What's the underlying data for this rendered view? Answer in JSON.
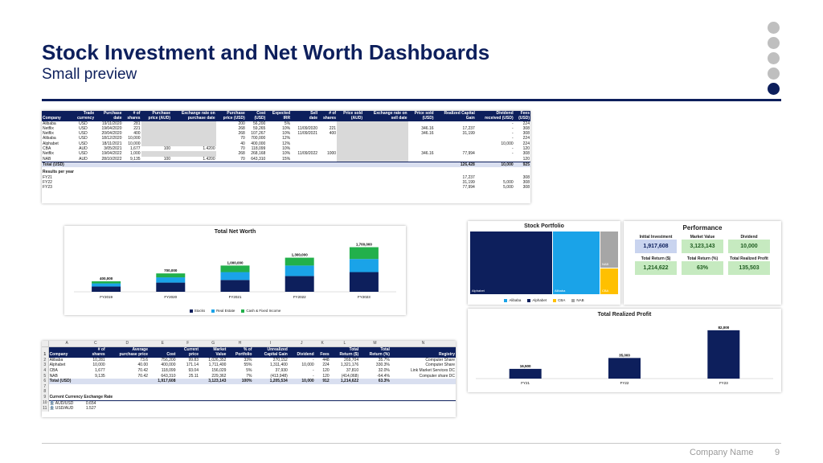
{
  "header": {
    "title": "Stock Investment and Net Worth Dashboards",
    "subtitle": "Small preview"
  },
  "footer": {
    "company": "Company Name",
    "page": "9"
  },
  "nav_dots": {
    "count": 5,
    "active_index": 4
  },
  "colors": {
    "navy": "#0d1f5c",
    "blue": "#1aa3e8",
    "green": "#22b04b",
    "grey": "#a6a6a6",
    "gold": "#ffc000"
  },
  "transactions_sheet": {
    "headers": [
      [
        "",
        "Company"
      ],
      [
        "Trade",
        "currency"
      ],
      [
        "Purchase",
        "date"
      ],
      [
        "# of",
        "shares"
      ],
      [
        "Purchase",
        "price (AUD)"
      ],
      [
        "Exchange rate on",
        "purchase date"
      ],
      [
        "Purchase",
        "price (USD)"
      ],
      [
        "Cost",
        "(USD)"
      ],
      [
        "Expected",
        "IRR"
      ],
      [
        "Sell",
        "date"
      ],
      [
        "# of",
        "shares"
      ],
      [
        "Price sold",
        "(AUD)"
      ],
      [
        "Exchange rate on",
        "sell date"
      ],
      [
        "Price sold",
        "(USD)"
      ],
      [
        "Realized Capital",
        "Gain"
      ],
      [
        "Dividend",
        "received (USD)"
      ],
      [
        "Fees",
        "(USD)"
      ]
    ],
    "rows": [
      [
        "Alibaba",
        "USD",
        "19/11/2020",
        "281",
        "",
        "",
        "200",
        "56,200",
        "5%",
        "",
        "",
        "",
        "",
        "",
        "",
        "-",
        "224"
      ],
      [
        "Netflix",
        "USD",
        "19/04/2020",
        "221",
        "",
        "",
        "268",
        "59,265",
        "10%",
        "11/09/2020",
        "221",
        "",
        "",
        "346.16",
        "17,237",
        "-",
        "308"
      ],
      [
        "Netflix",
        "USD",
        "20/04/2020",
        "400",
        "",
        "",
        "268",
        "107,267",
        "10%",
        "11/09/2021",
        "400",
        "",
        "",
        "346.16",
        "31,199",
        "-",
        "308"
      ],
      [
        "Alibaba",
        "USD",
        "18/12/2020",
        "10,000",
        "",
        "",
        "70",
        "700,000",
        "12%",
        "",
        "",
        "",
        "",
        "",
        "",
        "-",
        "224"
      ],
      [
        "Alphabet",
        "USD",
        "18/11/2021",
        "10,000",
        "",
        "",
        "40",
        "400,000",
        "12%",
        "",
        "",
        "",
        "",
        "",
        "",
        "10,000",
        "224"
      ],
      [
        "CBA",
        "AUD",
        "3/05/2021",
        "1,677",
        "100",
        "1.4200",
        "70",
        "118,099",
        "10%",
        "",
        "",
        "",
        "",
        "",
        "",
        "-",
        "120"
      ],
      [
        "Netflix",
        "USD",
        "19/04/2022",
        "1,000",
        "",
        "",
        "268",
        "268,168",
        "10%",
        "11/09/2022",
        "1000",
        "",
        "",
        "346.16",
        "77,994",
        "-",
        "308"
      ],
      [
        "NAB",
        "AUD",
        "28/10/2022",
        "9,135",
        "100",
        "1.4200",
        "70",
        "643,310",
        "15%",
        "",
        "",
        "",
        "",
        "",
        "",
        "",
        "120"
      ]
    ],
    "total": {
      "label": "Total (USD)",
      "cost": "",
      "realized": "126,428",
      "dividend": "10,000",
      "fees": "925"
    },
    "results_label": "Results per year",
    "years": [
      {
        "fy": "FY21",
        "realized": "17,237",
        "dividend": "",
        "fees": "308"
      },
      {
        "fy": "FY22",
        "realized": "31,199",
        "dividend": "5,000",
        "fees": "308"
      },
      {
        "fy": "FY23",
        "realized": "77,994",
        "dividend": "5,000",
        "fees": "308"
      }
    ]
  },
  "net_worth_chart": {
    "title": "Total Net Worth",
    "legend": [
      {
        "name": "Stocks",
        "color": "#0d1f5c"
      },
      {
        "name": "Real Estate",
        "color": "#1aa3e8"
      },
      {
        "name": "Cash & Fixed Income",
        "color": "#22b04b"
      }
    ]
  },
  "portfolio_chart": {
    "title": "Stock Portfolio",
    "tiles": [
      {
        "label": "Alphabet",
        "color": "#0d1f5c"
      },
      {
        "label": "Alibaba",
        "color": "#1aa3e8"
      },
      {
        "label": "NAB",
        "color": "#a6a6a6"
      },
      {
        "label": "CBA",
        "color": "#ffc000"
      }
    ],
    "legend": [
      "Alibaba",
      "Alphabet",
      "CBA",
      "NAB"
    ]
  },
  "performance": {
    "title": "Performance",
    "kpis": [
      {
        "label": "Initial Investment",
        "value": "1,917,608",
        "style": "blue"
      },
      {
        "label": "Market Value",
        "value": "3,123,143",
        "style": "green"
      },
      {
        "label": "Dividend",
        "value": "10,000",
        "style": "green"
      },
      {
        "label": "Total Return ($)",
        "value": "1,214,622",
        "style": "green"
      },
      {
        "label": "Total Return (%)",
        "value": "63%",
        "style": "green"
      },
      {
        "label": "Total Realized Profit",
        "value": "135,503",
        "style": "green"
      }
    ]
  },
  "realized_chart": {
    "title": "Total Realized Profit"
  },
  "holdings_sheet": {
    "letters": [
      "A",
      "C",
      "D",
      "E",
      "F",
      "G",
      "H",
      "I",
      "J",
      "K",
      "L",
      "M",
      "N"
    ],
    "header_top": [
      "",
      "# of",
      "Average",
      "",
      "Current",
      "Market",
      "% of",
      "Unrealized",
      "",
      "",
      "Total",
      "Total",
      ""
    ],
    "header_bottom": [
      "Company",
      "shares",
      "purchase price",
      "Cost",
      "price",
      "Value",
      "Portfolio",
      "Capital Gain",
      "Dividend",
      "Fees",
      "Return ($)",
      "Return (%)",
      "Registry"
    ],
    "rows": [
      [
        "Alibaba",
        "10,281",
        "73.6",
        "756,200",
        "99.83",
        "1,026,352",
        "33%",
        "270,152",
        "-",
        "448",
        "269,704",
        "35.7%",
        "Computer Share"
      ],
      [
        "Alphabet",
        "10,000",
        "40.00",
        "400,000",
        "171.14",
        "1,711,400",
        "55%",
        "1,311,400",
        "10,000",
        "224",
        "1,321,176",
        "330.3%",
        "Computer Share"
      ],
      [
        "CBA",
        "1,677",
        "70.42",
        "118,099",
        "93.04",
        "156,029",
        "5%",
        "37,930",
        "-",
        "120",
        "37,810",
        "32.0%",
        "Link Market Services DC"
      ],
      [
        "NAB",
        "9,135",
        "70.42",
        "643,310",
        "25.11",
        "229,362",
        "7%",
        "(413,948)",
        "-",
        "120",
        "(414,068)",
        "-64.4%",
        "Computer share DC"
      ]
    ],
    "total": [
      "Total (USD)",
      "",
      "",
      "1,917,608",
      "",
      "3,123,143",
      "100%",
      "1,205,534",
      "10,000",
      "912",
      "1,214,622",
      "63.3%",
      ""
    ],
    "fx_label": "Current Currency Exchange Rate",
    "fx": [
      {
        "pair": "AUD/USD",
        "rate": "0.654"
      },
      {
        "pair": "USD/AUD",
        "rate": "1.527"
      }
    ]
  },
  "chart_data": [
    {
      "type": "bar",
      "title": "Total Net Worth",
      "stacked": true,
      "categories": [
        "FY2019",
        "FY2020",
        "FY2021",
        "FY2022",
        "FY2023"
      ],
      "totals": [
        400000,
        700000,
        1000000,
        1300000,
        1700000
      ],
      "total_labels": [
        "400,000",
        "700,000",
        "1,000,000",
        "1,300,000",
        "1,700,000"
      ],
      "series": [
        {
          "name": "Stocks",
          "values": [
            200000,
            350000,
            450000,
            600000,
            750000
          ]
        },
        {
          "name": "Real Estate",
          "values": [
            120000,
            200000,
            300000,
            400000,
            500000
          ]
        },
        {
          "name": "Cash & Fixed Income",
          "values": [
            80000,
            150000,
            250000,
            300000,
            450000
          ]
        }
      ],
      "xlabel": "",
      "ylabel": "",
      "ylim": [
        0,
        1900000
      ],
      "legend": "bottom",
      "grid": false
    },
    {
      "type": "bar",
      "title": "Total Realized Profit",
      "categories": [
        "FY21",
        "FY22",
        "FY23"
      ],
      "values": [
        16500,
        35000,
        82000
      ],
      "labels": [
        "16,500",
        "35,000",
        "82,000"
      ],
      "xlabel": "",
      "ylabel": "",
      "ylim": [
        0,
        90000
      ],
      "grid": false
    }
  ]
}
